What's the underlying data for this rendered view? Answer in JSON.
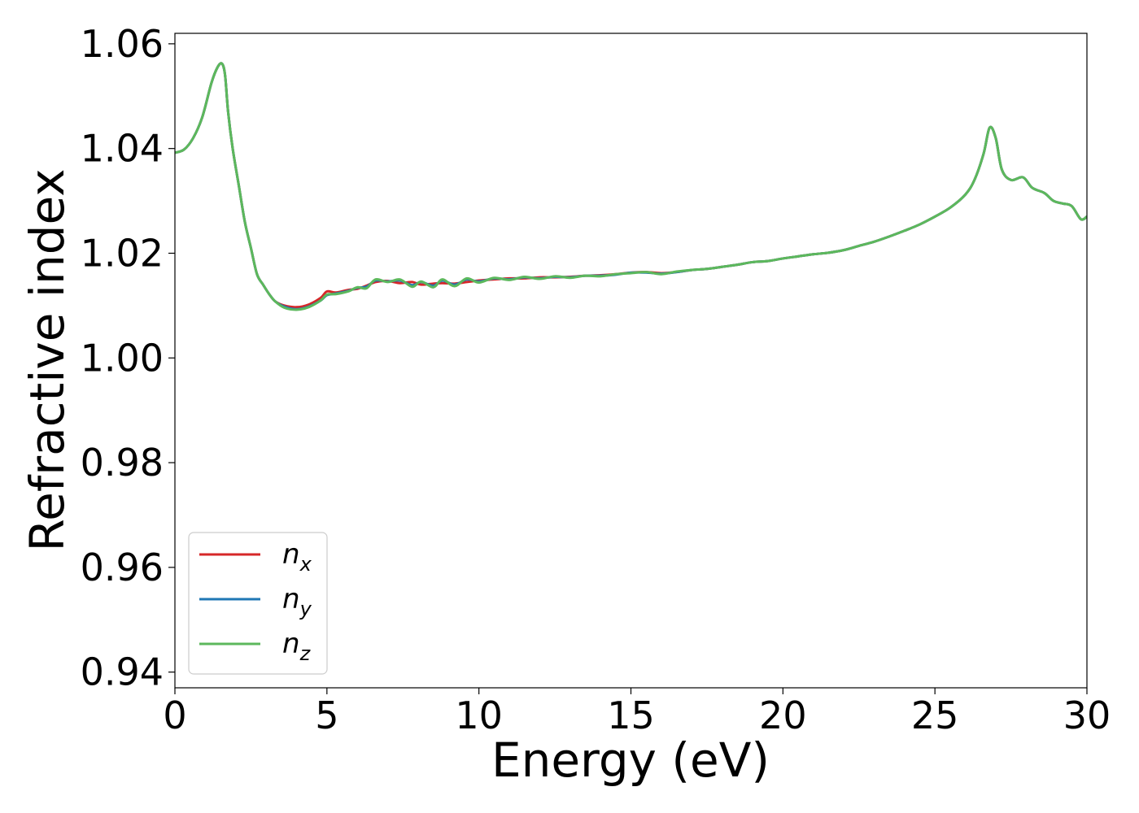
{
  "chart_data": {
    "type": "line",
    "xlabel": "Energy (eV)",
    "ylabel": "Refractive index",
    "xlim": [
      0,
      30
    ],
    "ylim": [
      0.937,
      1.062
    ],
    "xticks": [
      0,
      5,
      10,
      15,
      20,
      25,
      30
    ],
    "xtick_labels": [
      "0",
      "5",
      "10",
      "15",
      "20",
      "25",
      "30"
    ],
    "yticks": [
      0.94,
      0.96,
      0.98,
      1.0,
      1.02,
      1.04,
      1.06
    ],
    "ytick_labels": [
      "0.94",
      "0.96",
      "0.98",
      "1.00",
      "1.02",
      "1.04",
      "1.06"
    ],
    "grid": false,
    "legend_position": "lower-left",
    "series": [
      {
        "name": "n_x",
        "label_base": "n",
        "label_sub": "x",
        "color": "#d62728",
        "x": [
          0,
          0.3,
          0.6,
          0.9,
          1.2,
          1.4,
          1.55,
          1.65,
          1.75,
          1.9,
          2.1,
          2.3,
          2.5,
          2.7,
          2.9,
          3.1,
          3.3,
          3.6,
          4.0,
          4.4,
          4.8,
          5.0,
          5.3,
          5.7,
          6.0,
          6.3,
          6.6,
          7.0,
          7.4,
          7.8,
          8.1,
          8.5,
          8.8,
          9.2,
          9.6,
          10.0,
          10.5,
          11.0,
          11.5,
          12.0,
          12.5,
          13.0,
          13.5,
          14.0,
          14.5,
          15.0,
          15.5,
          16.0,
          16.5,
          17.0,
          17.5,
          18.0,
          18.5,
          19.0,
          19.5,
          20.0,
          20.5,
          21.0,
          21.5,
          22.0,
          22.5,
          23.0,
          23.5,
          24.0,
          24.5,
          25.0,
          25.5,
          26.0,
          26.3,
          26.6,
          26.8,
          27.0,
          27.2,
          27.5,
          27.9,
          28.2,
          28.6,
          28.9,
          29.2,
          29.5,
          29.8,
          30.0
        ],
        "y": [
          1.0392,
          1.0398,
          1.042,
          1.046,
          1.0525,
          1.0555,
          1.0562,
          1.054,
          1.047,
          1.04,
          1.033,
          1.026,
          1.021,
          1.016,
          1.014,
          1.0122,
          1.0108,
          1.01,
          1.0097,
          1.0102,
          1.0115,
          1.0127,
          1.0125,
          1.013,
          1.0132,
          1.0138,
          1.0145,
          1.0147,
          1.0143,
          1.0145,
          1.014,
          1.0142,
          1.0143,
          1.0142,
          1.0145,
          1.0148,
          1.015,
          1.0152,
          1.0152,
          1.0154,
          1.0154,
          1.0155,
          1.0157,
          1.0158,
          1.016,
          1.0163,
          1.0164,
          1.0162,
          1.0164,
          1.0168,
          1.017,
          1.0174,
          1.0178,
          1.0183,
          1.0185,
          1.019,
          1.0194,
          1.0198,
          1.0201,
          1.0206,
          1.0214,
          1.0222,
          1.0232,
          1.0243,
          1.0255,
          1.027,
          1.0287,
          1.0312,
          1.034,
          1.039,
          1.044,
          1.042,
          1.036,
          1.034,
          1.0345,
          1.0325,
          1.0315,
          1.03,
          1.0295,
          1.029,
          1.0265,
          1.027
        ]
      },
      {
        "name": "n_y",
        "label_base": "n",
        "label_sub": "y",
        "color": "#1f77b4",
        "x": [
          0,
          0.3,
          0.6,
          0.9,
          1.2,
          1.4,
          1.55,
          1.65,
          1.75,
          1.9,
          2.1,
          2.3,
          2.5,
          2.7,
          2.9,
          3.1,
          3.3,
          3.6,
          4.0,
          4.4,
          4.8,
          5.0,
          5.3,
          5.7,
          6.0,
          6.3,
          6.6,
          7.0,
          7.4,
          7.8,
          8.1,
          8.5,
          8.8,
          9.2,
          9.6,
          10.0,
          10.5,
          11.0,
          11.5,
          12.0,
          12.5,
          13.0,
          13.5,
          14.0,
          14.5,
          15.0,
          15.5,
          16.0,
          16.5,
          17.0,
          17.5,
          18.0,
          18.5,
          19.0,
          19.5,
          20.0,
          20.5,
          21.0,
          21.5,
          22.0,
          22.5,
          23.0,
          23.5,
          24.0,
          24.5,
          25.0,
          25.5,
          26.0,
          26.3,
          26.6,
          26.8,
          27.0,
          27.2,
          27.5,
          27.9,
          28.2,
          28.6,
          28.9,
          29.2,
          29.5,
          29.8,
          30.0
        ],
        "y": [
          1.0392,
          1.0398,
          1.042,
          1.046,
          1.0525,
          1.0555,
          1.0562,
          1.054,
          1.047,
          1.04,
          1.033,
          1.026,
          1.021,
          1.016,
          1.014,
          1.0122,
          1.0108,
          1.0098,
          1.0093,
          1.0098,
          1.011,
          1.012,
          1.0123,
          1.0128,
          1.0134,
          1.0136,
          1.0148,
          1.0146,
          1.0148,
          1.0139,
          1.0145,
          1.0138,
          1.0148,
          1.014,
          1.015,
          1.0146,
          1.0152,
          1.015,
          1.0154,
          1.0152,
          1.0155,
          1.0154,
          1.0157,
          1.0157,
          1.0159,
          1.0163,
          1.0163,
          1.0161,
          1.0164,
          1.0168,
          1.017,
          1.0174,
          1.0178,
          1.0183,
          1.0185,
          1.019,
          1.0194,
          1.0198,
          1.0201,
          1.0206,
          1.0214,
          1.0222,
          1.0232,
          1.0243,
          1.0255,
          1.027,
          1.0287,
          1.0312,
          1.034,
          1.039,
          1.044,
          1.042,
          1.036,
          1.034,
          1.0345,
          1.0325,
          1.0315,
          1.03,
          1.0295,
          1.029,
          1.0265,
          1.027
        ]
      },
      {
        "name": "n_z",
        "label_base": "n",
        "label_sub": "z",
        "color": "#5cb85c",
        "x": [
          0,
          0.3,
          0.6,
          0.9,
          1.2,
          1.4,
          1.55,
          1.65,
          1.75,
          1.9,
          2.1,
          2.3,
          2.5,
          2.7,
          2.9,
          3.1,
          3.3,
          3.6,
          4.0,
          4.4,
          4.8,
          5.0,
          5.3,
          5.7,
          6.0,
          6.3,
          6.6,
          7.0,
          7.4,
          7.8,
          8.1,
          8.5,
          8.8,
          9.2,
          9.6,
          10.0,
          10.5,
          11.0,
          11.5,
          12.0,
          12.5,
          13.0,
          13.5,
          14.0,
          14.5,
          15.0,
          15.5,
          16.0,
          16.5,
          17.0,
          17.5,
          18.0,
          18.5,
          19.0,
          19.5,
          20.0,
          20.5,
          21.0,
          21.5,
          22.0,
          22.5,
          23.0,
          23.5,
          24.0,
          24.5,
          25.0,
          25.5,
          26.0,
          26.3,
          26.6,
          26.8,
          27.0,
          27.2,
          27.5,
          27.9,
          28.2,
          28.6,
          28.9,
          29.2,
          29.5,
          29.8,
          30.0
        ],
        "y": [
          1.0392,
          1.0398,
          1.042,
          1.046,
          1.0525,
          1.0555,
          1.0562,
          1.054,
          1.047,
          1.04,
          1.033,
          1.026,
          1.021,
          1.016,
          1.014,
          1.0122,
          1.0108,
          1.0096,
          1.0092,
          1.0097,
          1.011,
          1.0121,
          1.0122,
          1.0127,
          1.0135,
          1.0133,
          1.015,
          1.0145,
          1.015,
          1.0136,
          1.0146,
          1.0135,
          1.015,
          1.0137,
          1.0152,
          1.0144,
          1.0153,
          1.0149,
          1.0155,
          1.0151,
          1.0156,
          1.0153,
          1.0157,
          1.0156,
          1.016,
          1.0162,
          1.0164,
          1.016,
          1.0165,
          1.0168,
          1.017,
          1.0174,
          1.0178,
          1.0183,
          1.0185,
          1.019,
          1.0194,
          1.0198,
          1.0201,
          1.0206,
          1.0214,
          1.0222,
          1.0232,
          1.0243,
          1.0255,
          1.027,
          1.0287,
          1.0312,
          1.034,
          1.039,
          1.044,
          1.042,
          1.036,
          1.034,
          1.0345,
          1.0325,
          1.0315,
          1.03,
          1.0295,
          1.029,
          1.0265,
          1.027
        ]
      }
    ]
  }
}
